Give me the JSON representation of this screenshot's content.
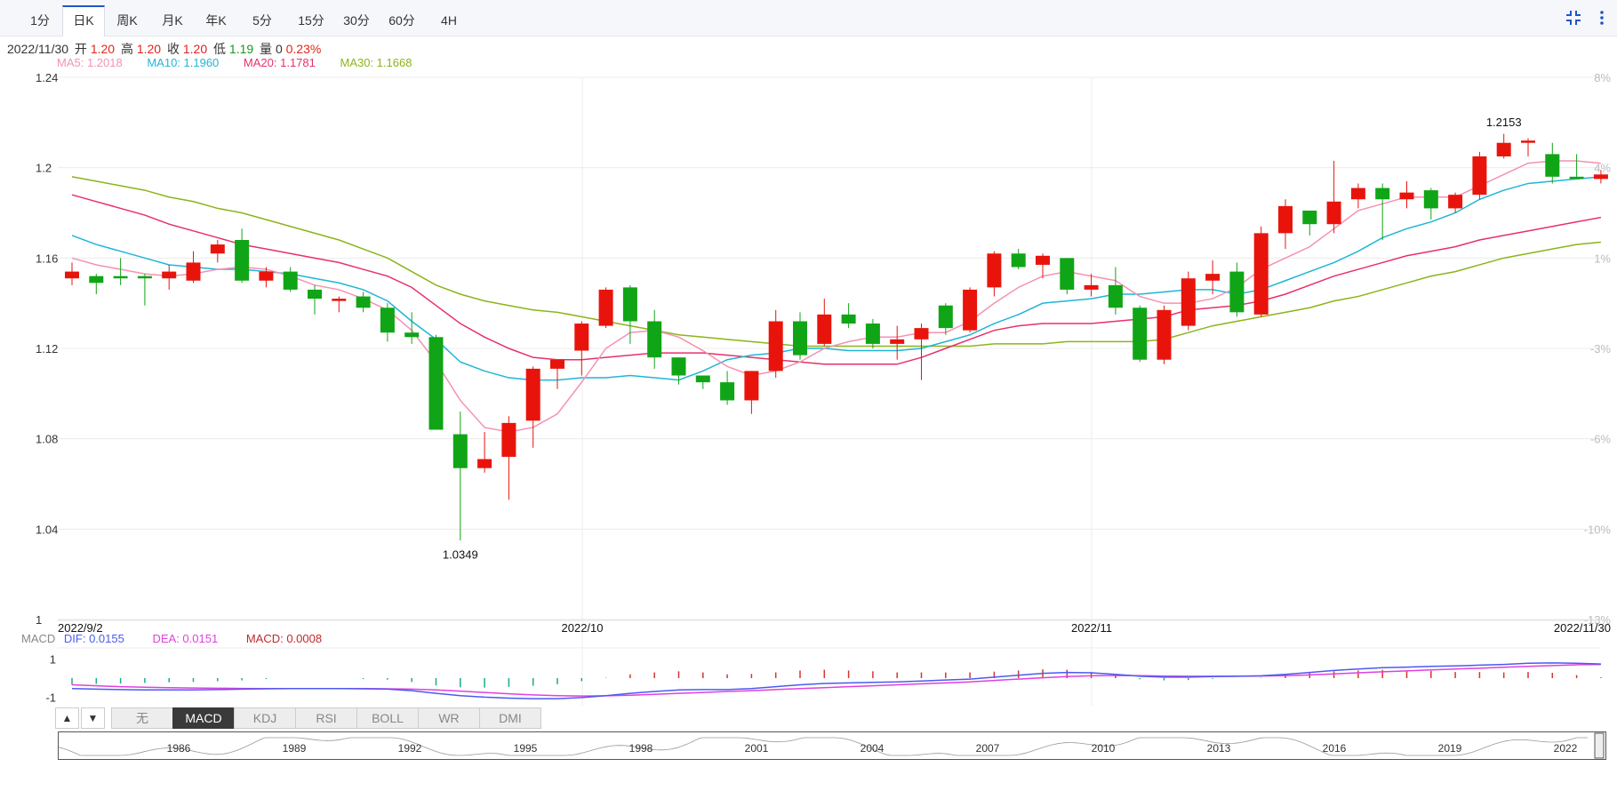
{
  "toolbar": {
    "tabs": [
      "1分",
      "日K",
      "周K",
      "月K",
      "年K",
      "5分",
      "15分",
      "30分",
      "60分",
      "4H"
    ],
    "active_tab": "日K",
    "shrink_icon": "shrink-icon",
    "more_icon": "more-vertical-icon"
  },
  "ohlc": {
    "date": "2022/11/30",
    "open_label": "开",
    "open": "1.20",
    "high_label": "高",
    "high": "1.20",
    "close_label": "收",
    "close": "1.20",
    "low_label": "低",
    "low": "1.19",
    "volume_label": "量",
    "volume": "0",
    "change": "0.23%"
  },
  "ma_legend": {
    "ma5": "MA5: 1.2018",
    "ma10": "MA10: 1.1960",
    "ma20": "MA20: 1.1781",
    "ma30": "MA30: 1.1668"
  },
  "macd_legend": {
    "title": "MACD",
    "dif": "DIF: 0.0155",
    "dea": "DEA: 0.0151",
    "macd": "MACD: 0.0008"
  },
  "indicator_tabs": [
    "无",
    "MACD",
    "KDJ",
    "RSI",
    "BOLL",
    "WR",
    "DMI"
  ],
  "active_indicator": "MACD",
  "indicator_arrows": [
    "▲",
    "▼"
  ],
  "colors": {
    "up": "#e8140c",
    "down": "#10a516",
    "ma5": "#f492b0",
    "ma10": "#1fb6d6",
    "ma20": "#e8306a",
    "ma30": "#8cb41a",
    "dif": "#4a5bf0",
    "dea": "#e040e0",
    "accent": "#1e56c8"
  },
  "chart_data": [
    {
      "type": "candlestick",
      "title": "",
      "x_labels": [
        "2022/9/2",
        "2022/10",
        "2022/11",
        "2022/11/30"
      ],
      "y_ticks": [
        "1.24",
        "1.2",
        "1.16",
        "1.12",
        "1.08",
        "1.04",
        "1"
      ],
      "right_ticks": [
        "8%",
        "4%",
        "1%",
        "-3%",
        "-6%",
        "-10%",
        "-13%"
      ],
      "ylim": [
        1.0,
        1.24
      ],
      "annotations": [
        {
          "text": "1.0349",
          "value": 1.0349,
          "type": "low"
        },
        {
          "text": "1.2153",
          "value": 1.2153,
          "type": "high"
        }
      ],
      "candles": [
        {
          "o": 1.151,
          "h": 1.158,
          "l": 1.148,
          "c": 1.154
        },
        {
          "o": 1.152,
          "h": 1.153,
          "l": 1.144,
          "c": 1.149
        },
        {
          "o": 1.152,
          "h": 1.16,
          "l": 1.148,
          "c": 1.151
        },
        {
          "o": 1.152,
          "h": 1.153,
          "l": 1.139,
          "c": 1.151
        },
        {
          "o": 1.151,
          "h": 1.157,
          "l": 1.146,
          "c": 1.154
        },
        {
          "o": 1.15,
          "h": 1.163,
          "l": 1.149,
          "c": 1.158
        },
        {
          "o": 1.162,
          "h": 1.168,
          "l": 1.158,
          "c": 1.166
        },
        {
          "o": 1.168,
          "h": 1.173,
          "l": 1.149,
          "c": 1.15
        },
        {
          "o": 1.15,
          "h": 1.156,
          "l": 1.147,
          "c": 1.154
        },
        {
          "o": 1.154,
          "h": 1.156,
          "l": 1.145,
          "c": 1.146
        },
        {
          "o": 1.146,
          "h": 1.148,
          "l": 1.135,
          "c": 1.142
        },
        {
          "o": 1.141,
          "h": 1.143,
          "l": 1.136,
          "c": 1.142
        },
        {
          "o": 1.143,
          "h": 1.145,
          "l": 1.136,
          "c": 1.138
        },
        {
          "o": 1.138,
          "h": 1.14,
          "l": 1.123,
          "c": 1.127
        },
        {
          "o": 1.127,
          "h": 1.136,
          "l": 1.122,
          "c": 1.125
        },
        {
          "o": 1.125,
          "h": 1.126,
          "l": 1.084,
          "c": 1.084
        },
        {
          "o": 1.082,
          "h": 1.092,
          "l": 1.035,
          "c": 1.067
        },
        {
          "o": 1.067,
          "h": 1.083,
          "l": 1.065,
          "c": 1.071
        },
        {
          "o": 1.072,
          "h": 1.09,
          "l": 1.053,
          "c": 1.087
        },
        {
          "o": 1.088,
          "h": 1.112,
          "l": 1.076,
          "c": 1.111
        },
        {
          "o": 1.111,
          "h": 1.114,
          "l": 1.102,
          "c": 1.115
        },
        {
          "o": 1.119,
          "h": 1.132,
          "l": 1.108,
          "c": 1.131
        },
        {
          "o": 1.13,
          "h": 1.147,
          "l": 1.129,
          "c": 1.146
        },
        {
          "o": 1.147,
          "h": 1.148,
          "l": 1.122,
          "c": 1.132
        },
        {
          "o": 1.132,
          "h": 1.137,
          "l": 1.111,
          "c": 1.116
        },
        {
          "o": 1.116,
          "h": 1.116,
          "l": 1.104,
          "c": 1.108
        },
        {
          "o": 1.108,
          "h": 1.108,
          "l": 1.102,
          "c": 1.105
        },
        {
          "o": 1.105,
          "h": 1.11,
          "l": 1.095,
          "c": 1.097
        },
        {
          "o": 1.097,
          "h": 1.11,
          "l": 1.091,
          "c": 1.11
        },
        {
          "o": 1.11,
          "h": 1.137,
          "l": 1.107,
          "c": 1.132
        },
        {
          "o": 1.132,
          "h": 1.136,
          "l": 1.115,
          "c": 1.117
        },
        {
          "o": 1.122,
          "h": 1.142,
          "l": 1.121,
          "c": 1.135
        },
        {
          "o": 1.135,
          "h": 1.14,
          "l": 1.129,
          "c": 1.131
        },
        {
          "o": 1.131,
          "h": 1.133,
          "l": 1.12,
          "c": 1.122
        },
        {
          "o": 1.122,
          "h": 1.13,
          "l": 1.115,
          "c": 1.124
        },
        {
          "o": 1.124,
          "h": 1.131,
          "l": 1.106,
          "c": 1.129
        },
        {
          "o": 1.139,
          "h": 1.14,
          "l": 1.126,
          "c": 1.129
        },
        {
          "o": 1.128,
          "h": 1.147,
          "l": 1.127,
          "c": 1.146
        },
        {
          "o": 1.147,
          "h": 1.163,
          "l": 1.143,
          "c": 1.162
        },
        {
          "o": 1.162,
          "h": 1.164,
          "l": 1.155,
          "c": 1.156
        },
        {
          "o": 1.157,
          "h": 1.162,
          "l": 1.151,
          "c": 1.161
        },
        {
          "o": 1.16,
          "h": 1.16,
          "l": 1.144,
          "c": 1.146
        },
        {
          "o": 1.146,
          "h": 1.153,
          "l": 1.143,
          "c": 1.148
        },
        {
          "o": 1.148,
          "h": 1.156,
          "l": 1.135,
          "c": 1.138
        },
        {
          "o": 1.138,
          "h": 1.139,
          "l": 1.114,
          "c": 1.115
        },
        {
          "o": 1.115,
          "h": 1.139,
          "l": 1.113,
          "c": 1.137
        },
        {
          "o": 1.13,
          "h": 1.154,
          "l": 1.128,
          "c": 1.151
        },
        {
          "o": 1.15,
          "h": 1.159,
          "l": 1.144,
          "c": 1.153
        },
        {
          "o": 1.154,
          "h": 1.158,
          "l": 1.134,
          "c": 1.136
        },
        {
          "o": 1.135,
          "h": 1.174,
          "l": 1.134,
          "c": 1.171
        },
        {
          "o": 1.171,
          "h": 1.186,
          "l": 1.164,
          "c": 1.183
        },
        {
          "o": 1.181,
          "h": 1.181,
          "l": 1.17,
          "c": 1.175
        },
        {
          "o": 1.175,
          "h": 1.203,
          "l": 1.171,
          "c": 1.185
        },
        {
          "o": 1.186,
          "h": 1.193,
          "l": 1.182,
          "c": 1.191
        },
        {
          "o": 1.191,
          "h": 1.193,
          "l": 1.168,
          "c": 1.186
        },
        {
          "o": 1.186,
          "h": 1.194,
          "l": 1.182,
          "c": 1.189
        },
        {
          "o": 1.19,
          "h": 1.191,
          "l": 1.177,
          "c": 1.182
        },
        {
          "o": 1.182,
          "h": 1.189,
          "l": 1.18,
          "c": 1.188
        },
        {
          "o": 1.188,
          "h": 1.207,
          "l": 1.186,
          "c": 1.205
        },
        {
          "o": 1.205,
          "h": 1.215,
          "l": 1.204,
          "c": 1.211
        },
        {
          "o": 1.211,
          "h": 1.213,
          "l": 1.205,
          "c": 1.212
        },
        {
          "o": 1.206,
          "h": 1.211,
          "l": 1.193,
          "c": 1.196
        },
        {
          "o": 1.196,
          "h": 1.206,
          "l": 1.195,
          "c": 1.195
        },
        {
          "o": 1.195,
          "h": 1.199,
          "l": 1.193,
          "c": 1.197
        }
      ],
      "ma5": [
        1.16,
        1.157,
        1.155,
        1.153,
        1.152,
        1.153,
        1.155,
        1.156,
        1.155,
        1.152,
        1.148,
        1.146,
        1.142,
        1.137,
        1.128,
        1.114,
        1.097,
        1.085,
        1.083,
        1.085,
        1.091,
        1.105,
        1.12,
        1.127,
        1.128,
        1.125,
        1.119,
        1.112,
        1.108,
        1.11,
        1.114,
        1.12,
        1.123,
        1.125,
        1.125,
        1.127,
        1.127,
        1.132,
        1.14,
        1.147,
        1.152,
        1.154,
        1.152,
        1.15,
        1.143,
        1.14,
        1.14,
        1.142,
        1.147,
        1.155,
        1.16,
        1.165,
        1.173,
        1.181,
        1.184,
        1.187,
        1.187,
        1.187,
        1.192,
        1.197,
        1.202,
        1.203,
        1.203,
        1.202
      ],
      "ma10": [
        1.17,
        1.166,
        1.163,
        1.16,
        1.157,
        1.156,
        1.155,
        1.155,
        1.154,
        1.153,
        1.151,
        1.149,
        1.146,
        1.141,
        1.132,
        1.124,
        1.114,
        1.11,
        1.107,
        1.106,
        1.106,
        1.107,
        1.107,
        1.108,
        1.107,
        1.106,
        1.11,
        1.115,
        1.117,
        1.118,
        1.12,
        1.12,
        1.119,
        1.119,
        1.119,
        1.12,
        1.123,
        1.126,
        1.131,
        1.135,
        1.14,
        1.141,
        1.142,
        1.144,
        1.144,
        1.145,
        1.146,
        1.146,
        1.144,
        1.146,
        1.15,
        1.154,
        1.158,
        1.163,
        1.169,
        1.173,
        1.176,
        1.18,
        1.186,
        1.19,
        1.193,
        1.194,
        1.195,
        1.196
      ],
      "ma20": [
        1.188,
        1.185,
        1.182,
        1.179,
        1.175,
        1.172,
        1.169,
        1.166,
        1.164,
        1.162,
        1.16,
        1.158,
        1.155,
        1.152,
        1.147,
        1.139,
        1.131,
        1.125,
        1.12,
        1.116,
        1.115,
        1.115,
        1.116,
        1.117,
        1.118,
        1.118,
        1.118,
        1.117,
        1.116,
        1.115,
        1.114,
        1.113,
        1.113,
        1.113,
        1.113,
        1.116,
        1.12,
        1.124,
        1.128,
        1.13,
        1.131,
        1.131,
        1.131,
        1.132,
        1.133,
        1.134,
        1.137,
        1.138,
        1.139,
        1.141,
        1.144,
        1.148,
        1.152,
        1.155,
        1.158,
        1.161,
        1.163,
        1.165,
        1.168,
        1.17,
        1.172,
        1.174,
        1.176,
        1.178
      ],
      "ma30": [
        1.196,
        1.194,
        1.192,
        1.19,
        1.187,
        1.185,
        1.182,
        1.18,
        1.177,
        1.174,
        1.171,
        1.168,
        1.164,
        1.16,
        1.154,
        1.148,
        1.144,
        1.141,
        1.139,
        1.137,
        1.136,
        1.134,
        1.132,
        1.13,
        1.128,
        1.126,
        1.125,
        1.124,
        1.123,
        1.122,
        1.121,
        1.121,
        1.121,
        1.121,
        1.121,
        1.121,
        1.121,
        1.121,
        1.122,
        1.122,
        1.122,
        1.123,
        1.123,
        1.123,
        1.123,
        1.124,
        1.127,
        1.13,
        1.132,
        1.134,
        1.136,
        1.138,
        1.141,
        1.143,
        1.146,
        1.149,
        1.152,
        1.154,
        1.157,
        1.16,
        1.162,
        1.164,
        1.166,
        1.167
      ]
    },
    {
      "type": "macd",
      "y_ticks": [
        "1",
        "-1"
      ],
      "ylim": [
        -1.4,
        1.4
      ],
      "dif": [
        -0.55,
        -0.58,
        -0.6,
        -0.62,
        -0.62,
        -0.62,
        -0.6,
        -0.58,
        -0.56,
        -0.55,
        -0.55,
        -0.55,
        -0.56,
        -0.58,
        -0.66,
        -0.8,
        -0.92,
        -1.0,
        -1.05,
        -1.08,
        -1.08,
        -1.02,
        -0.92,
        -0.8,
        -0.7,
        -0.62,
        -0.6,
        -0.6,
        -0.55,
        -0.45,
        -0.35,
        -0.28,
        -0.25,
        -0.22,
        -0.2,
        -0.15,
        -0.1,
        -0.05,
        0.05,
        0.15,
        0.25,
        0.3,
        0.28,
        0.2,
        0.1,
        0.05,
        0.05,
        0.08,
        0.1,
        0.12,
        0.2,
        0.3,
        0.4,
        0.48,
        0.55,
        0.58,
        0.62,
        0.64,
        0.68,
        0.72,
        0.78,
        0.8,
        0.78,
        0.74
      ],
      "dea": [
        -0.35,
        -0.4,
        -0.45,
        -0.48,
        -0.5,
        -0.52,
        -0.53,
        -0.54,
        -0.55,
        -0.55,
        -0.55,
        -0.55,
        -0.55,
        -0.56,
        -0.58,
        -0.62,
        -0.68,
        -0.75,
        -0.82,
        -0.88,
        -0.92,
        -0.94,
        -0.93,
        -0.9,
        -0.85,
        -0.8,
        -0.75,
        -0.7,
        -0.66,
        -0.6,
        -0.55,
        -0.5,
        -0.45,
        -0.4,
        -0.35,
        -0.3,
        -0.25,
        -0.2,
        -0.12,
        -0.05,
        0.02,
        0.08,
        0.12,
        0.14,
        0.13,
        0.11,
        0.1,
        0.1,
        0.1,
        0.11,
        0.13,
        0.17,
        0.22,
        0.28,
        0.33,
        0.38,
        0.43,
        0.48,
        0.52,
        0.57,
        0.62,
        0.66,
        0.7,
        0.72
      ],
      "hist": [
        -0.35,
        -0.3,
        -0.28,
        -0.25,
        -0.22,
        -0.2,
        -0.16,
        -0.12,
        -0.05,
        0.0,
        0.0,
        0.0,
        -0.05,
        -0.08,
        -0.2,
        -0.38,
        -0.48,
        -0.5,
        -0.46,
        -0.4,
        -0.32,
        -0.16,
        0.02,
        0.2,
        0.3,
        0.36,
        0.3,
        0.2,
        0.22,
        0.3,
        0.4,
        0.44,
        0.4,
        0.36,
        0.3,
        0.3,
        0.3,
        0.3,
        0.34,
        0.4,
        0.46,
        0.44,
        0.32,
        0.12,
        -0.06,
        -0.12,
        -0.1,
        -0.04,
        0.0,
        0.02,
        0.14,
        0.26,
        0.36,
        0.4,
        0.44,
        0.4,
        0.38,
        0.32,
        0.32,
        0.3,
        0.32,
        0.28,
        0.16,
        0.04
      ]
    }
  ],
  "navigator": {
    "years": [
      "1986",
      "1989",
      "1992",
      "1995",
      "1998",
      "2001",
      "2004",
      "2007",
      "2010",
      "2013",
      "2016",
      "2019",
      "2022"
    ]
  }
}
